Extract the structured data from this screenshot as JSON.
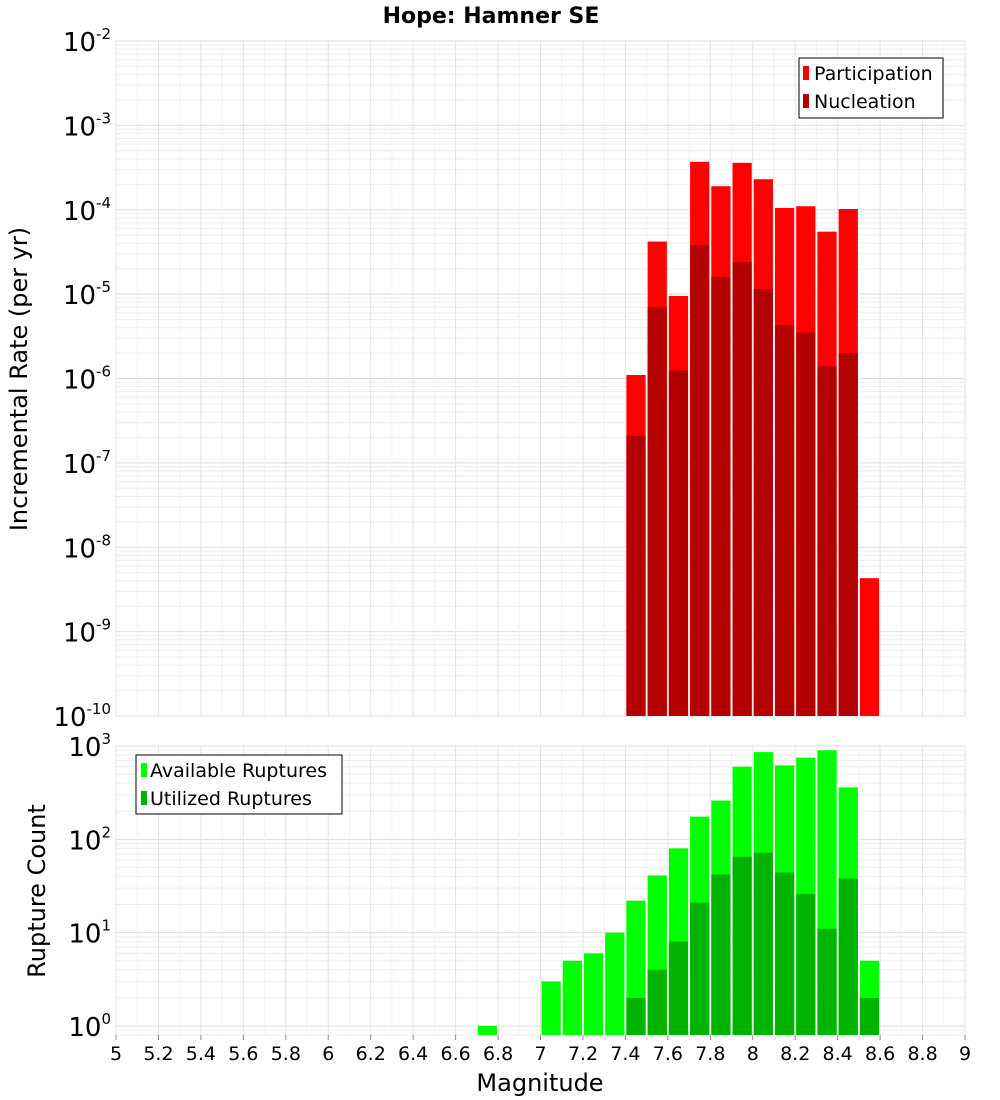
{
  "chart_data": [
    {
      "type": "bar",
      "title": "Hope: Hamner SE",
      "xlabel": "Magnitude",
      "ylabel": "Incremental Rate (per yr)",
      "yscale": "log",
      "xlim": [
        5,
        9
      ],
      "ylim": [
        1e-10,
        0.01
      ],
      "grid": true,
      "legend_position": "top-right",
      "x": [
        7.45,
        7.55,
        7.65,
        7.75,
        7.85,
        7.95,
        8.05,
        8.15,
        8.25,
        8.35,
        8.45,
        8.55
      ],
      "series": [
        {
          "name": "Participation",
          "color": "#ff0000",
          "values": [
            1.1e-06,
            4.2e-05,
            9.5e-06,
            0.00037,
            0.00019,
            0.00036,
            0.00023,
            0.000105,
            0.00011,
            5.5e-05,
            0.000102,
            4.3e-09
          ]
        },
        {
          "name": "Nucleation",
          "color": "#b30000",
          "values": [
            2.1e-07,
            7e-06,
            1.25e-06,
            3.8e-05,
            1.6e-05,
            2.4e-05,
            1.15e-05,
            4.3e-06,
            3.5e-06,
            1.4e-06,
            2e-06,
            null
          ]
        }
      ]
    },
    {
      "type": "bar",
      "title": "",
      "xlabel": "Magnitude",
      "ylabel": "Rupture Count",
      "yscale": "log",
      "xlim": [
        5,
        9
      ],
      "ylim": [
        0.8,
        1000
      ],
      "grid": true,
      "legend_position": "top-left",
      "x_ticks": [
        "5",
        "5.2",
        "5.4",
        "5.6",
        "5.8",
        "6",
        "6.2",
        "6.4",
        "6.6",
        "6.8",
        "7",
        "7.2",
        "7.4",
        "7.6",
        "7.8",
        "8",
        "8.2",
        "8.4",
        "8.6",
        "8.8",
        "9"
      ],
      "x": [
        6.75,
        7.05,
        7.15,
        7.25,
        7.35,
        7.45,
        7.55,
        7.65,
        7.75,
        7.85,
        7.95,
        8.05,
        8.15,
        8.25,
        8.35,
        8.45,
        8.55
      ],
      "series": [
        {
          "name": "Available Ruptures",
          "color": "#00ff00",
          "values": [
            1,
            3,
            5,
            6,
            10,
            22,
            41,
            80,
            175,
            260,
            600,
            860,
            620,
            750,
            900,
            360,
            5
          ]
        },
        {
          "name": "Utilized Ruptures",
          "color": "#00b300",
          "values": [
            null,
            null,
            null,
            null,
            null,
            2,
            4,
            8,
            21,
            42,
            65,
            72,
            44,
            26,
            11,
            38,
            2
          ]
        }
      ]
    }
  ]
}
